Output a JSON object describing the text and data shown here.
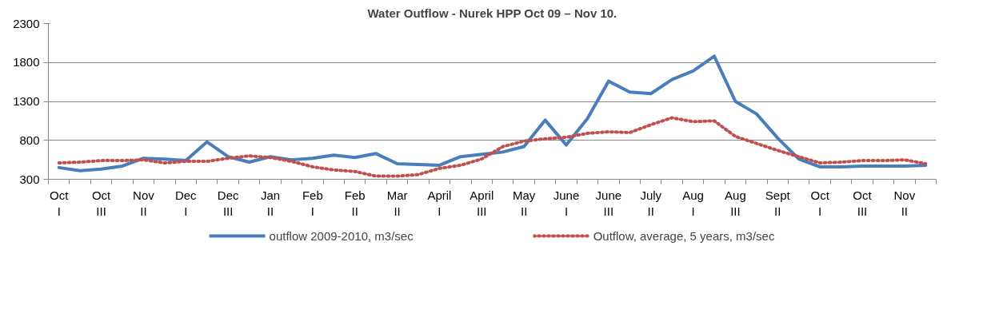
{
  "chart_data": {
    "type": "line",
    "title": "Water Outflow - Nurek HPP Oct 09 – Nov 10.",
    "categories": [
      "Oct I",
      null,
      "Oct III",
      null,
      "Nov II",
      null,
      "Dec I",
      null,
      "Dec III",
      null,
      "Jan II",
      null,
      "Feb I",
      null,
      "Feb II",
      null,
      "Mar II",
      null,
      "April I",
      null,
      "April III",
      null,
      "May II",
      null,
      "June I",
      null,
      "June III",
      null,
      "July II",
      null,
      "Aug I",
      null,
      "Aug III",
      null,
      "Sept II",
      null,
      "Oct I",
      null,
      "Oct III",
      null,
      "Nov II",
      null
    ],
    "series": [
      {
        "name": "outflow 2009-2010, m3/sec",
        "color": "#4a7ebb",
        "line_style": "solid",
        "values": [
          450,
          410,
          430,
          470,
          570,
          560,
          540,
          780,
          590,
          520,
          590,
          550,
          570,
          610,
          580,
          630,
          500,
          490,
          480,
          590,
          620,
          650,
          720,
          1060,
          740,
          1080,
          1560,
          1420,
          1400,
          1580,
          1690,
          1880,
          1300,
          1140,
          830,
          560,
          460,
          460,
          470,
          470,
          470,
          480
        ]
      },
      {
        "name": "Outflow, average, 5 years, m3/sec",
        "color": "#c0504d",
        "line_style": "dotted",
        "values": [
          510,
          520,
          540,
          540,
          550,
          510,
          530,
          530,
          570,
          600,
          580,
          530,
          460,
          420,
          400,
          340,
          340,
          360,
          440,
          480,
          560,
          720,
          790,
          820,
          840,
          890,
          910,
          900,
          1000,
          1090,
          1040,
          1050,
          850,
          760,
          670,
          590,
          510,
          520,
          540,
          540,
          550,
          500
        ]
      }
    ],
    "ylim": [
      300,
      2300
    ],
    "yticks": [
      300,
      800,
      1300,
      1800,
      2300
    ],
    "grid": "y",
    "legend": "bottom",
    "marker": "none"
  }
}
